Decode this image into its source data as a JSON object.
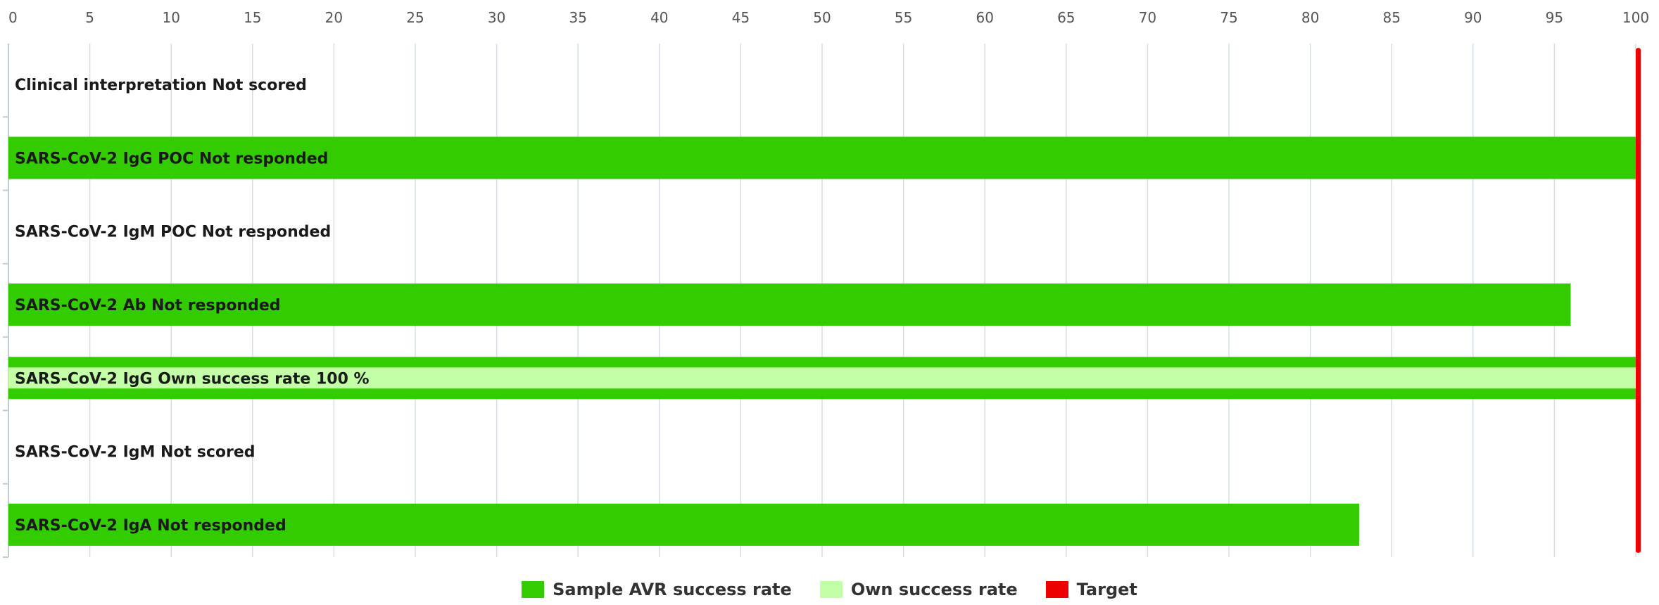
{
  "chart_data": {
    "type": "bar",
    "orientation": "horizontal",
    "xlim": [
      0,
      100
    ],
    "xticks": [
      "0",
      "5",
      "10",
      "15",
      "20",
      "25",
      "30",
      "35",
      "40",
      "45",
      "50",
      "55",
      "60",
      "65",
      "70",
      "75",
      "80",
      "85",
      "90",
      "95",
      "100"
    ],
    "grid": true,
    "target": 100,
    "categories": [
      "Clinical interpretation Not scored",
      "SARS-CoV-2 IgG POC Not responded",
      "SARS-CoV-2 IgM POC Not responded",
      "SARS-CoV-2 Ab Not responded",
      "SARS-CoV-2 IgG Own success rate 100 %",
      "SARS-CoV-2 IgM Not scored",
      "SARS-CoV-2 IgA Not responded"
    ],
    "series": [
      {
        "name": "Sample AVR success rate",
        "color": "#33cc00",
        "values": [
          null,
          100,
          null,
          96,
          100,
          null,
          83
        ]
      },
      {
        "name": "Own success rate",
        "color": "#c2ffa6",
        "values": [
          null,
          null,
          null,
          null,
          100,
          null,
          null
        ]
      }
    ],
    "legend": {
      "placement": "bottom-center",
      "items": [
        {
          "label": "Sample AVR success rate",
          "color": "#33cc00"
        },
        {
          "label": "Own success rate",
          "color": "#c2ffa6"
        },
        {
          "label": "Target",
          "color": "#ee0000"
        }
      ]
    }
  }
}
